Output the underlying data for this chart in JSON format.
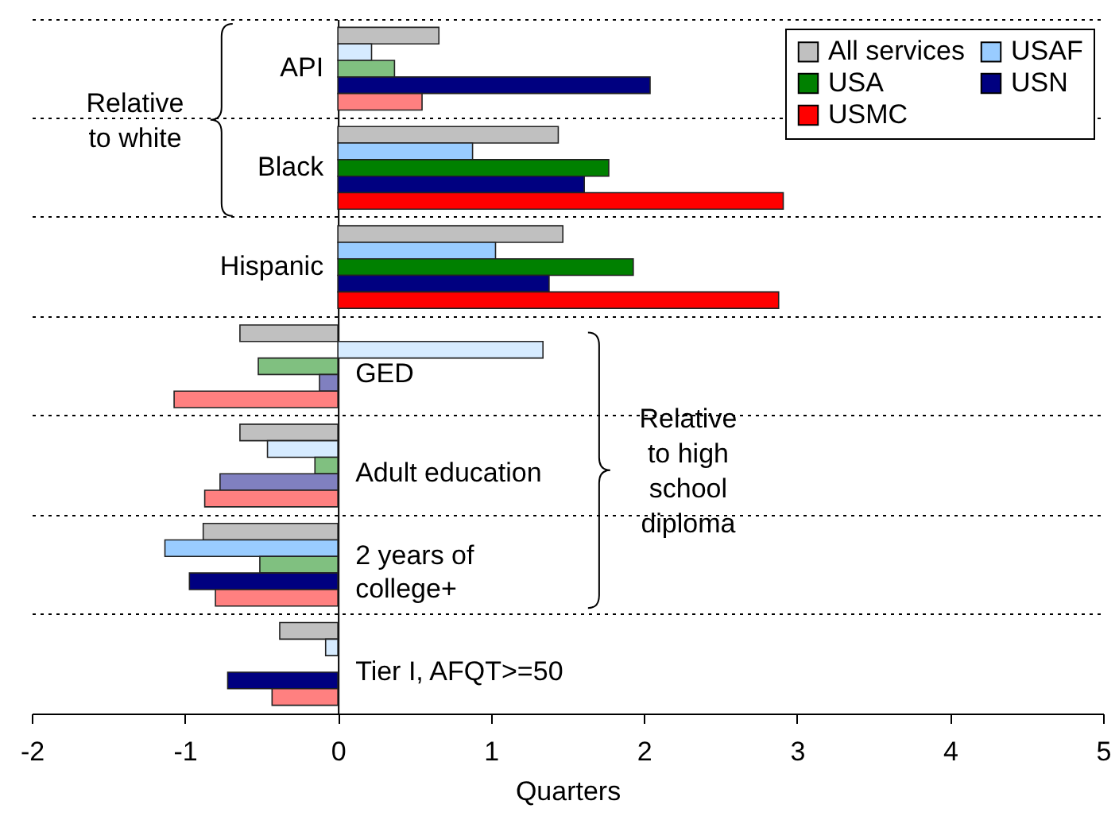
{
  "chart_data": {
    "type": "bar",
    "orientation": "horizontal",
    "xlabel": "Quarters",
    "categories": [
      "API",
      "Black",
      "Hispanic",
      "GED",
      "Adult education",
      "2 years of college+",
      "Tier I, AFQT>=50"
    ],
    "series": [
      {
        "name": "All services",
        "color": "#c0c0c0",
        "values": [
          0.66,
          1.44,
          1.47,
          -0.64,
          -0.64,
          -0.88,
          -0.38
        ]
      },
      {
        "name": "USAF",
        "color": "#99ccff",
        "colors": [
          "#d6ebff",
          "#99ccff",
          "#99ccff",
          "#d6ebff",
          "#d6ebff",
          "#99ccff",
          "#d6ebff"
        ],
        "values": [
          0.22,
          0.88,
          1.03,
          1.34,
          -0.46,
          -1.13,
          -0.08
        ]
      },
      {
        "name": "USA",
        "color": "#008000",
        "colors": [
          "#80c080",
          "#008000",
          "#008000",
          "#80c080",
          "#80c080",
          "#80c080",
          null
        ],
        "values": [
          0.37,
          1.77,
          1.93,
          -0.52,
          -0.15,
          -0.51,
          null
        ]
      },
      {
        "name": "USN",
        "color": "#000080",
        "colors": [
          "#000080",
          "#000080",
          "#000080",
          "#8080c0",
          "#8080c0",
          "#000080",
          "#000080"
        ],
        "values": [
          2.04,
          1.61,
          1.38,
          -0.12,
          -0.77,
          -0.97,
          -0.72
        ]
      },
      {
        "name": "USMC",
        "color": "#ff0000",
        "colors": [
          "#ff8080",
          "#ff0000",
          "#ff0000",
          "#ff8080",
          "#ff8080",
          "#ff8080",
          "#ff8080"
        ],
        "values": [
          0.55,
          2.91,
          2.88,
          -1.07,
          -0.87,
          -0.8,
          -0.43
        ]
      }
    ],
    "xlim": [
      -2,
      5
    ],
    "xticks": [
      -2,
      -1,
      0,
      1,
      2,
      3,
      4,
      5
    ],
    "grid": "y",
    "legend": "top right",
    "annotations": [
      "Relative to white",
      "Relative to high school diploma"
    ]
  }
}
